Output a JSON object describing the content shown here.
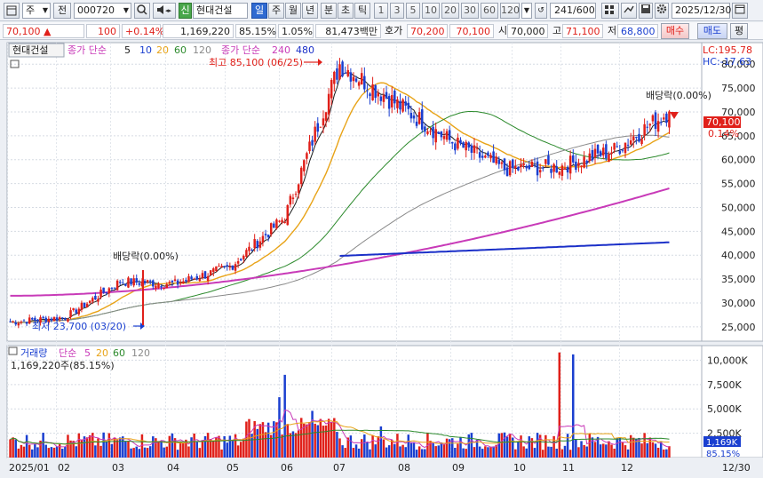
{
  "toolbar": {
    "chart_type_icon": "chart-window-icon",
    "type_select": "주",
    "prev_label": "전",
    "code_value": "000720",
    "sound_icon": "speaker-icon",
    "market_badge": "신",
    "stock_name": "현대건설",
    "period_buttons": [
      "일",
      "주",
      "월",
      "년",
      "분",
      "초",
      "틱"
    ],
    "active_period": "일",
    "interval_buttons": [
      "1",
      "3",
      "5",
      "10",
      "20",
      "30",
      "60",
      "120"
    ],
    "count_value": "241",
    "count_max": "/600",
    "date_value": "2025/12/30",
    "icons": [
      "grid-settings-icon",
      "draw-tool-icon",
      "save-icon",
      "gear-icon",
      "calendar-icon"
    ]
  },
  "quote": {
    "price": "70,100",
    "arrow": "▲",
    "change": "100",
    "change_pct": "+0.14%",
    "volume": "1,169,220",
    "vol_ratio": "85.15%",
    "turnover_pct": "1.05%",
    "trade_amount": "81,473백만",
    "ask_label": "호가",
    "ask": "70,200",
    "bid": "70,100",
    "open_label": "시",
    "open": "70,000",
    "high_label": "고",
    "high": "71,100",
    "low_label": "저",
    "low": "68,800",
    "buy_button": "매수",
    "sell_button": "매도",
    "eval_button": "평"
  },
  "price_panel": {
    "stock_label": "현대건설",
    "ma_prefix": "종가 단순",
    "ma_periods_1": [
      "5",
      "10",
      "20",
      "60",
      "120"
    ],
    "ma_prefix_2": "종가 단순",
    "ma_periods_2": [
      "240",
      "480"
    ],
    "lc": "LC:195.78",
    "hc": "HC:-17.63",
    "high_note": "최고 85,100 (06/25)",
    "low_note": "최저 23,700 (03/20)",
    "div_note_1": "배당락(0.00%)",
    "div_note_2": "배당락(0.00%)",
    "current_price_tag": "70,100",
    "current_pct_tag": "0.14%",
    "y_ticks": [
      "80,000",
      "75,000",
      "70,000",
      "65,000",
      "60,000",
      "55,000",
      "50,000",
      "45,000",
      "40,000",
      "35,000",
      "30,000",
      "25,000"
    ]
  },
  "volume_panel": {
    "title": "거래량",
    "ma_prefix": "단순",
    "ma_periods": [
      "5",
      "20",
      "60",
      "120"
    ],
    "current_volume": "1,169,220주(85.15%)",
    "y_ticks": [
      "10,000K",
      "7,500K",
      "5,000K",
      "2,500K"
    ],
    "vol_tag": "1,169K",
    "pct_tag": "85.15%"
  },
  "x_axis": {
    "labels": [
      "2025/01",
      "02",
      "03",
      "04",
      "05",
      "06",
      "07",
      "08",
      "09",
      "10",
      "11",
      "12"
    ],
    "end_label": "12/30"
  },
  "colors": {
    "up": "#e0201a",
    "down": "#1a3fd0",
    "ma5": "#1a1a1a",
    "ma20": "#e8a317",
    "ma60": "#2c8a2c",
    "ma120": "#8a8a8a",
    "ma240": "#c83ab8",
    "ma480": "#1a2fc8"
  },
  "chart_data": {
    "type": "candlestick",
    "title": "현대건설",
    "x_range": [
      "2025/01/02",
      "2025/12/30"
    ],
    "ylim": [
      22000,
      84500
    ],
    "y_tick_values": [
      25000,
      30000,
      35000,
      40000,
      45000,
      50000,
      55000,
      60000,
      65000,
      70000,
      75000,
      80000
    ],
    "approx_monthly_close": [
      {
        "month": "2025/01",
        "close": 27000
      },
      {
        "month": "2025/02",
        "close": 34500
      },
      {
        "month": "2025/03",
        "close": 34000
      },
      {
        "month": "2025/04",
        "close": 37500
      },
      {
        "month": "2025/05",
        "close": 48000
      },
      {
        "month": "2025/06",
        "close": 80000
      },
      {
        "month": "2025/07",
        "close": 72000
      },
      {
        "month": "2025/08",
        "close": 64000
      },
      {
        "month": "2025/09",
        "close": 58000
      },
      {
        "month": "2025/10",
        "close": 58500
      },
      {
        "month": "2025/11",
        "close": 62000
      },
      {
        "month": "2025/12",
        "close": 70100
      }
    ],
    "annotations": [
      {
        "label": "최고 85,100 (06/25)",
        "value": 85100
      },
      {
        "label": "최저 23,700 (03/20)",
        "value": 23700
      }
    ],
    "volume_ylim": [
      0,
      11500000
    ],
    "volume_tick_values": [
      2500000,
      5000000,
      7500000,
      10000000
    ],
    "volume_spikes": [
      {
        "month": "2025/06",
        "value": 8500000
      },
      {
        "month": "2025/10",
        "value": 10800000
      },
      {
        "month": "2025/11",
        "value": 10600000
      }
    ]
  }
}
